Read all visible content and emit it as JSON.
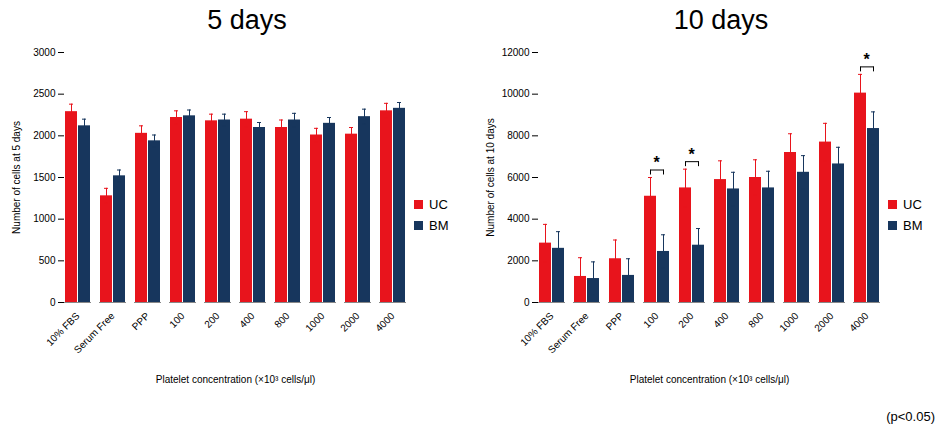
{
  "chart_data": [
    {
      "type": "bar",
      "title": "5 days",
      "x_label": "Platelet concentration (×10³ cells/μl)",
      "y_label": "Number of cells at 5 days",
      "categories": [
        "10% FBS",
        "Serum Free",
        "PPP",
        "100",
        "200",
        "400",
        "800",
        "1000",
        "2000",
        "4000"
      ],
      "series": [
        {
          "name": "UC",
          "color": "#e8141c",
          "values": [
            2290,
            1280,
            2030,
            2220,
            2180,
            2200,
            2100,
            2010,
            2020,
            2300
          ],
          "errors": [
            90,
            90,
            90,
            80,
            80,
            90,
            90,
            80,
            80,
            90
          ]
        },
        {
          "name": "BM",
          "color": "#17365d",
          "values": [
            2120,
            1520,
            1940,
            2240,
            2190,
            2100,
            2190,
            2150,
            2230,
            2330
          ],
          "errors": [
            80,
            70,
            70,
            70,
            70,
            60,
            80,
            70,
            90,
            70
          ]
        }
      ],
      "ylim": [
        0,
        3000
      ],
      "yticks": [
        0,
        500,
        1000,
        1500,
        2000,
        2500,
        3000
      ],
      "grid": false,
      "legend": "right",
      "significance": []
    },
    {
      "type": "bar",
      "title": "10 days",
      "x_label": "Platelet concentration (×10³ cells/μl)",
      "y_label": "Number of cells at 10 days",
      "categories": [
        "10% FBS",
        "Serum Free",
        "PPP",
        "100",
        "200",
        "400",
        "800",
        "1000",
        "2000",
        "4000"
      ],
      "series": [
        {
          "name": "UC",
          "color": "#e8141c",
          "values": [
            2850,
            1250,
            2100,
            5100,
            5500,
            5900,
            6000,
            7200,
            7700,
            10050
          ],
          "errors": [
            900,
            900,
            900,
            900,
            900,
            900,
            850,
            900,
            900,
            900
          ]
        },
        {
          "name": "BM",
          "color": "#17365d",
          "values": [
            2600,
            1150,
            1300,
            2450,
            2750,
            5450,
            5500,
            6250,
            6650,
            8350
          ],
          "errors": [
            800,
            800,
            800,
            800,
            800,
            800,
            800,
            800,
            800,
            800
          ]
        }
      ],
      "ylim": [
        0,
        12000
      ],
      "yticks": [
        0,
        2000,
        4000,
        6000,
        8000,
        10000,
        12000
      ],
      "grid": false,
      "legend": "right",
      "significance": [
        {
          "category": "100",
          "label": "*"
        },
        {
          "category": "200",
          "label": "*"
        },
        {
          "category": "4000",
          "label": "*"
        }
      ]
    }
  ],
  "caption": "(p<0.05)"
}
